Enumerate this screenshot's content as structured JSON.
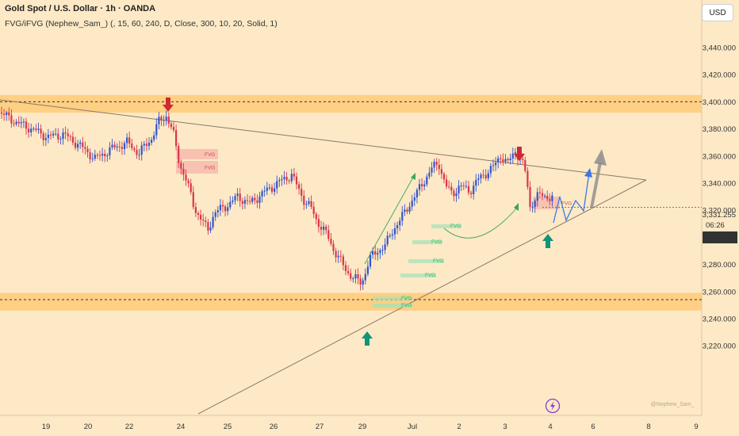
{
  "header": {
    "title": "Gold Spot / U.S. Dollar · 1h · OANDA",
    "indicator": "FVG/iFVG (Nephew_Sam_) (, 15, 60, 240, D, Close, 300, 10, 20, Solid, 1)"
  },
  "currency_button": "USD",
  "watermark": "@Nephew_Sam_",
  "chart_data": {
    "type": "candlestick",
    "instrument": "Gold Spot / U.S. Dollar",
    "interval": "1h",
    "y_ticks": [
      "3,440.000",
      "3,420.000",
      "3,400.000",
      "3,380.000",
      "3,360.000",
      "3,340.000",
      "3,320.000",
      "3,300.000",
      "3,280.000",
      "3,260.000",
      "3,240.000",
      "3,220.000"
    ],
    "y_tick_values": [
      3440,
      3420,
      3400,
      3380,
      3360,
      3340,
      3320,
      3300,
      3280,
      3260,
      3240,
      3220
    ],
    "x_ticks": [
      "19",
      "20",
      "22",
      "24",
      "25",
      "26",
      "27",
      "29",
      "Jul",
      "2",
      "3",
      "4",
      "6",
      "8",
      "9"
    ],
    "price_labels": {
      "last_price": "3,331.255",
      "countdown": "06:26",
      "current_price": "3,322.164"
    },
    "resistance_level": 3400,
    "support_level": 3254,
    "fvg_label": "FVG",
    "colors": {
      "background": "#fde9c6",
      "bull_candle": "#3355cc",
      "bear_candle": "#d9364a",
      "zone": "#ffc56d",
      "bear_fvg": "#f4a3a3",
      "bull_fvg": "#9fe3b8",
      "sell_arrow": "#cc2a36",
      "buy_arrow": "#129478",
      "projection": "#3c78e6",
      "target_arrow": "#8c8c8c"
    }
  }
}
